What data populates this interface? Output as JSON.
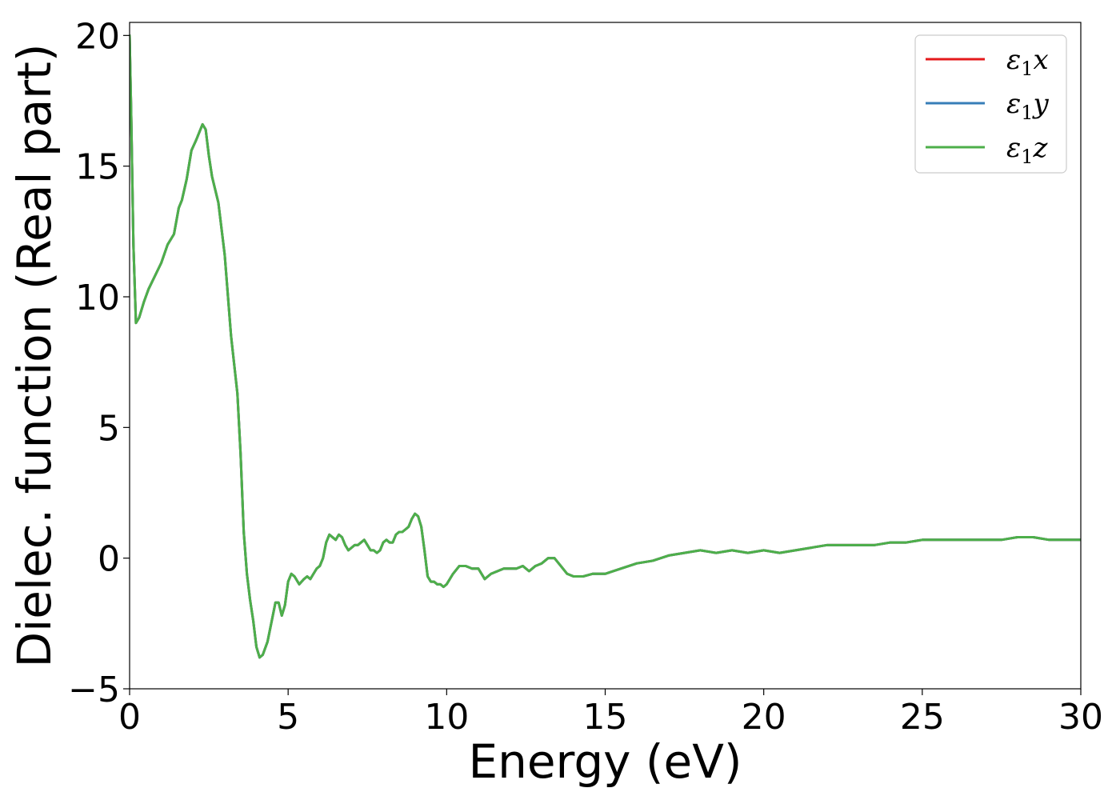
{
  "chart_data": {
    "type": "line",
    "title": "",
    "xlabel": "Energy (eV)",
    "ylabel": "Dielec. function (Real part)",
    "xlim": [
      0,
      30
    ],
    "ylim": [
      -5,
      20.5
    ],
    "x_ticks": [
      0,
      5,
      10,
      15,
      20,
      25,
      30
    ],
    "x_tick_labels": [
      "0",
      "5",
      "10",
      "15",
      "20",
      "25",
      "30"
    ],
    "y_ticks": [
      -5,
      0,
      5,
      10,
      15,
      20
    ],
    "y_tick_labels": [
      "−5",
      "0",
      "5",
      "10",
      "15",
      "20"
    ],
    "grid": false,
    "legend_position": "top-right",
    "series": [
      {
        "name": "ε₁x",
        "legend": {
          "main": "ε",
          "sub": "1",
          "tail": "x"
        },
        "color": "#e41a1c",
        "x": [
          0,
          0.05,
          0.12,
          0.2,
          0.3,
          0.45,
          0.6,
          0.8,
          1.0,
          1.2,
          1.4,
          1.55,
          1.65,
          1.8,
          1.95,
          2.1,
          2.2,
          2.3,
          2.4,
          2.5,
          2.6,
          2.8,
          3.0,
          3.2,
          3.4,
          3.5,
          3.6,
          3.7,
          3.8,
          3.9,
          4.0,
          4.1,
          4.2,
          4.35,
          4.5,
          4.6,
          4.7,
          4.8,
          4.9,
          5.0,
          5.1,
          5.2,
          5.35,
          5.5,
          5.6,
          5.7,
          5.8,
          5.9,
          6.0,
          6.1,
          6.2,
          6.3,
          6.4,
          6.5,
          6.6,
          6.7,
          6.8,
          6.9,
          7.0,
          7.1,
          7.2,
          7.3,
          7.4,
          7.5,
          7.6,
          7.7,
          7.8,
          7.9,
          8.0,
          8.1,
          8.2,
          8.3,
          8.4,
          8.5,
          8.6,
          8.7,
          8.8,
          8.9,
          9.0,
          9.1,
          9.2,
          9.3,
          9.4,
          9.5,
          9.6,
          9.7,
          9.8,
          9.9,
          10.0,
          10.2,
          10.4,
          10.6,
          10.8,
          11.0,
          11.2,
          11.4,
          11.6,
          11.8,
          12.0,
          12.2,
          12.4,
          12.6,
          12.8,
          13.0,
          13.2,
          13.4,
          13.6,
          13.8,
          14.0,
          14.3,
          14.6,
          15.0,
          15.5,
          16.0,
          16.5,
          17.0,
          17.5,
          18.0,
          18.5,
          19.0,
          19.5,
          20.0,
          20.5,
          21.0,
          21.5,
          22.0,
          22.5,
          23.0,
          23.5,
          24.0,
          24.5,
          25.0,
          25.5,
          26.0,
          26.5,
          27.0,
          27.5,
          28.0,
          28.5,
          29.0,
          29.5,
          30.0
        ],
        "y": [
          20.0,
          17.0,
          12.0,
          9.0,
          9.2,
          9.8,
          10.3,
          10.8,
          11.3,
          12.0,
          12.4,
          13.4,
          13.7,
          14.5,
          15.6,
          16.0,
          16.3,
          16.6,
          16.4,
          15.4,
          14.6,
          13.6,
          11.6,
          8.5,
          6.3,
          4.0,
          1.0,
          -0.6,
          -1.6,
          -2.4,
          -3.4,
          -3.8,
          -3.7,
          -3.2,
          -2.3,
          -1.7,
          -1.7,
          -2.2,
          -1.8,
          -0.9,
          -0.6,
          -0.7,
          -1.0,
          -0.8,
          -0.7,
          -0.8,
          -0.6,
          -0.4,
          -0.3,
          0.0,
          0.6,
          0.9,
          0.8,
          0.7,
          0.9,
          0.8,
          0.5,
          0.3,
          0.4,
          0.5,
          0.5,
          0.6,
          0.7,
          0.5,
          0.3,
          0.3,
          0.2,
          0.3,
          0.6,
          0.7,
          0.6,
          0.6,
          0.9,
          1.0,
          1.0,
          1.1,
          1.2,
          1.5,
          1.7,
          1.6,
          1.2,
          0.3,
          -0.7,
          -0.9,
          -0.9,
          -1.0,
          -1.0,
          -1.1,
          -1.0,
          -0.6,
          -0.3,
          -0.3,
          -0.4,
          -0.4,
          -0.8,
          -0.6,
          -0.5,
          -0.4,
          -0.4,
          -0.4,
          -0.3,
          -0.5,
          -0.3,
          -0.2,
          0.0,
          0.0,
          -0.3,
          -0.6,
          -0.7,
          -0.7,
          -0.6,
          -0.6,
          -0.4,
          -0.2,
          -0.1,
          0.1,
          0.2,
          0.3,
          0.2,
          0.3,
          0.2,
          0.3,
          0.2,
          0.3,
          0.4,
          0.5,
          0.5,
          0.5,
          0.5,
          0.6,
          0.6,
          0.7,
          0.7,
          0.7,
          0.7,
          0.7,
          0.7,
          0.8,
          0.8,
          0.7,
          0.7,
          0.7
        ]
      },
      {
        "name": "ε₁y",
        "legend": {
          "main": "ε",
          "sub": "1",
          "tail": "y"
        },
        "color": "#377eb8",
        "same_as": "ε₁x"
      },
      {
        "name": "ε₁z",
        "legend": {
          "main": "ε",
          "sub": "1",
          "tail": "z"
        },
        "color": "#4daf4a",
        "same_as": "ε₁x"
      }
    ]
  }
}
